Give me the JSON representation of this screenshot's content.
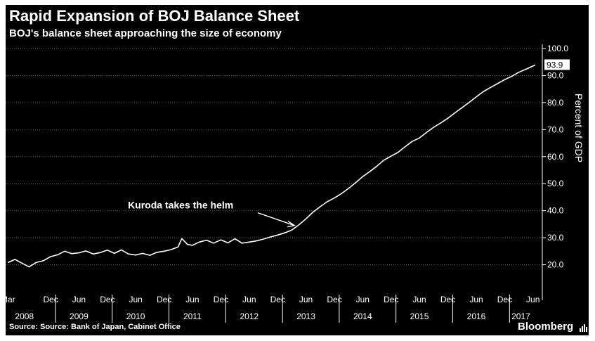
{
  "header": {
    "title": "Rapid Expansion of BOJ Balance Sheet",
    "subtitle": "BOJ's balance sheet approaching the size of economy"
  },
  "footer": {
    "source": "Source: Source: Bank of Japan, Cabinet Office",
    "brand": "Bloomberg",
    "brand_icon": "bar-chart-icon"
  },
  "colors": {
    "background": "#000000",
    "line": "#ffffff",
    "grid": "#5a5a5a",
    "text": "#ffffff"
  },
  "chart_data": {
    "type": "line",
    "title": "Rapid Expansion of BOJ Balance Sheet",
    "subtitle": "BOJ's balance sheet approaching the size of economy",
    "ylabel": "Percent of GDP",
    "ylim": [
      10,
      100
    ],
    "y_axis_side": "right",
    "y_ticks": [
      "20.0",
      "30.0",
      "40.0",
      "50.0",
      "60.0",
      "70.0",
      "80.0",
      "90.0",
      "100.0"
    ],
    "grid": "horizontal dotted",
    "xlim": [
      "2008-02-15",
      "2017-07-31"
    ],
    "x_ticks": [
      {
        "label": "Mar",
        "date": "2008-03-01"
      },
      {
        "label": "Dec",
        "date": "2008-12-01"
      },
      {
        "label": "Jun",
        "date": "2009-06-01"
      },
      {
        "label": "Dec",
        "date": "2009-12-01"
      },
      {
        "label": "Jun",
        "date": "2010-06-01"
      },
      {
        "label": "Dec",
        "date": "2010-12-01"
      },
      {
        "label": "Jun",
        "date": "2011-06-01"
      },
      {
        "label": "Dec",
        "date": "2011-12-01"
      },
      {
        "label": "Jun",
        "date": "2012-06-01"
      },
      {
        "label": "Dec",
        "date": "2012-12-01"
      },
      {
        "label": "Jun",
        "date": "2013-06-01"
      },
      {
        "label": "Dec",
        "date": "2013-12-01"
      },
      {
        "label": "Jun",
        "date": "2014-06-01"
      },
      {
        "label": "Dec",
        "date": "2014-12-01"
      },
      {
        "label": "Jun",
        "date": "2015-06-01"
      },
      {
        "label": "Dec",
        "date": "2015-12-01"
      },
      {
        "label": "Jun",
        "date": "2016-06-01"
      },
      {
        "label": "Dec",
        "date": "2016-12-01"
      },
      {
        "label": "Jun",
        "date": "2017-06-01"
      }
    ],
    "year_labels": [
      {
        "label": "2008",
        "date": "2008-06-15"
      },
      {
        "label": "2009",
        "date": "2009-06-01"
      },
      {
        "label": "2010",
        "date": "2010-06-01"
      },
      {
        "label": "2011",
        "date": "2011-06-01"
      },
      {
        "label": "2012",
        "date": "2012-06-01"
      },
      {
        "label": "2013",
        "date": "2013-06-01"
      },
      {
        "label": "2014",
        "date": "2014-06-01"
      },
      {
        "label": "2015",
        "date": "2015-06-01"
      },
      {
        "label": "2016",
        "date": "2016-06-01"
      },
      {
        "label": "2017",
        "date": "2017-03-15"
      }
    ],
    "year_dividers": [
      "2009-01-01",
      "2010-01-01",
      "2011-01-01",
      "2012-01-01",
      "2013-01-01",
      "2014-01-01",
      "2015-01-01",
      "2016-01-01",
      "2017-01-01"
    ],
    "last_value_label": "93.9",
    "annotation": {
      "text": "Kuroda takes the helm",
      "points_to": {
        "date": "2013-04-01",
        "value": 33.5
      }
    },
    "series": [
      {
        "points": [
          [
            "2008-03-01",
            20.8
          ],
          [
            "2008-04-15",
            22.0
          ],
          [
            "2008-06-01",
            20.5
          ],
          [
            "2008-07-15",
            19.2
          ],
          [
            "2008-09-01",
            20.9
          ],
          [
            "2008-10-15",
            21.5
          ],
          [
            "2008-12-01",
            23.0
          ],
          [
            "2009-01-15",
            23.7
          ],
          [
            "2009-03-01",
            25.0
          ],
          [
            "2009-04-15",
            24.1
          ],
          [
            "2009-06-01",
            24.4
          ],
          [
            "2009-07-15",
            25.1
          ],
          [
            "2009-09-01",
            24.0
          ],
          [
            "2009-10-15",
            24.5
          ],
          [
            "2009-12-01",
            25.4
          ],
          [
            "2010-01-15",
            24.2
          ],
          [
            "2010-03-01",
            25.5
          ],
          [
            "2010-04-15",
            24.0
          ],
          [
            "2010-06-01",
            23.6
          ],
          [
            "2010-07-15",
            24.2
          ],
          [
            "2010-09-01",
            23.5
          ],
          [
            "2010-10-15",
            24.6
          ],
          [
            "2010-12-01",
            25.0
          ],
          [
            "2011-01-15",
            25.6
          ],
          [
            "2011-03-01",
            26.6
          ],
          [
            "2011-03-25",
            29.7
          ],
          [
            "2011-05-01",
            27.5
          ],
          [
            "2011-06-01",
            27.2
          ],
          [
            "2011-07-15",
            28.4
          ],
          [
            "2011-09-01",
            29.1
          ],
          [
            "2011-10-15",
            28.0
          ],
          [
            "2011-12-01",
            29.2
          ],
          [
            "2012-01-15",
            28.1
          ],
          [
            "2012-03-01",
            29.6
          ],
          [
            "2012-04-15",
            28.0
          ],
          [
            "2012-06-01",
            28.4
          ],
          [
            "2012-07-15",
            28.8
          ],
          [
            "2012-09-01",
            29.5
          ],
          [
            "2012-10-15",
            30.3
          ],
          [
            "2012-12-01",
            31.0
          ],
          [
            "2013-01-15",
            31.8
          ],
          [
            "2013-03-01",
            32.8
          ],
          [
            "2013-04-15",
            34.7
          ],
          [
            "2013-06-01",
            37.0
          ],
          [
            "2013-07-15",
            39.4
          ],
          [
            "2013-09-01",
            41.5
          ],
          [
            "2013-10-15",
            43.3
          ],
          [
            "2013-12-01",
            44.7
          ],
          [
            "2014-01-15",
            46.3
          ],
          [
            "2014-03-01",
            48.2
          ],
          [
            "2014-04-15",
            50.3
          ],
          [
            "2014-06-01",
            52.6
          ],
          [
            "2014-07-15",
            54.4
          ],
          [
            "2014-09-01",
            56.5
          ],
          [
            "2014-10-15",
            58.7
          ],
          [
            "2014-12-01",
            60.2
          ],
          [
            "2015-01-15",
            61.6
          ],
          [
            "2015-03-01",
            63.7
          ],
          [
            "2015-04-15",
            65.6
          ],
          [
            "2015-06-01",
            66.9
          ],
          [
            "2015-07-15",
            68.9
          ],
          [
            "2015-09-01",
            70.9
          ],
          [
            "2015-10-15",
            72.4
          ],
          [
            "2015-12-01",
            74.2
          ],
          [
            "2016-01-15",
            76.2
          ],
          [
            "2016-03-01",
            78.1
          ],
          [
            "2016-04-15",
            80.0
          ],
          [
            "2016-06-01",
            82.1
          ],
          [
            "2016-07-15",
            84.0
          ],
          [
            "2016-09-01",
            85.6
          ],
          [
            "2016-10-15",
            87.0
          ],
          [
            "2016-12-01",
            88.5
          ],
          [
            "2017-01-15",
            89.7
          ],
          [
            "2017-03-01",
            91.2
          ],
          [
            "2017-04-15",
            92.3
          ],
          [
            "2017-06-15",
            93.9
          ]
        ]
      }
    ]
  }
}
